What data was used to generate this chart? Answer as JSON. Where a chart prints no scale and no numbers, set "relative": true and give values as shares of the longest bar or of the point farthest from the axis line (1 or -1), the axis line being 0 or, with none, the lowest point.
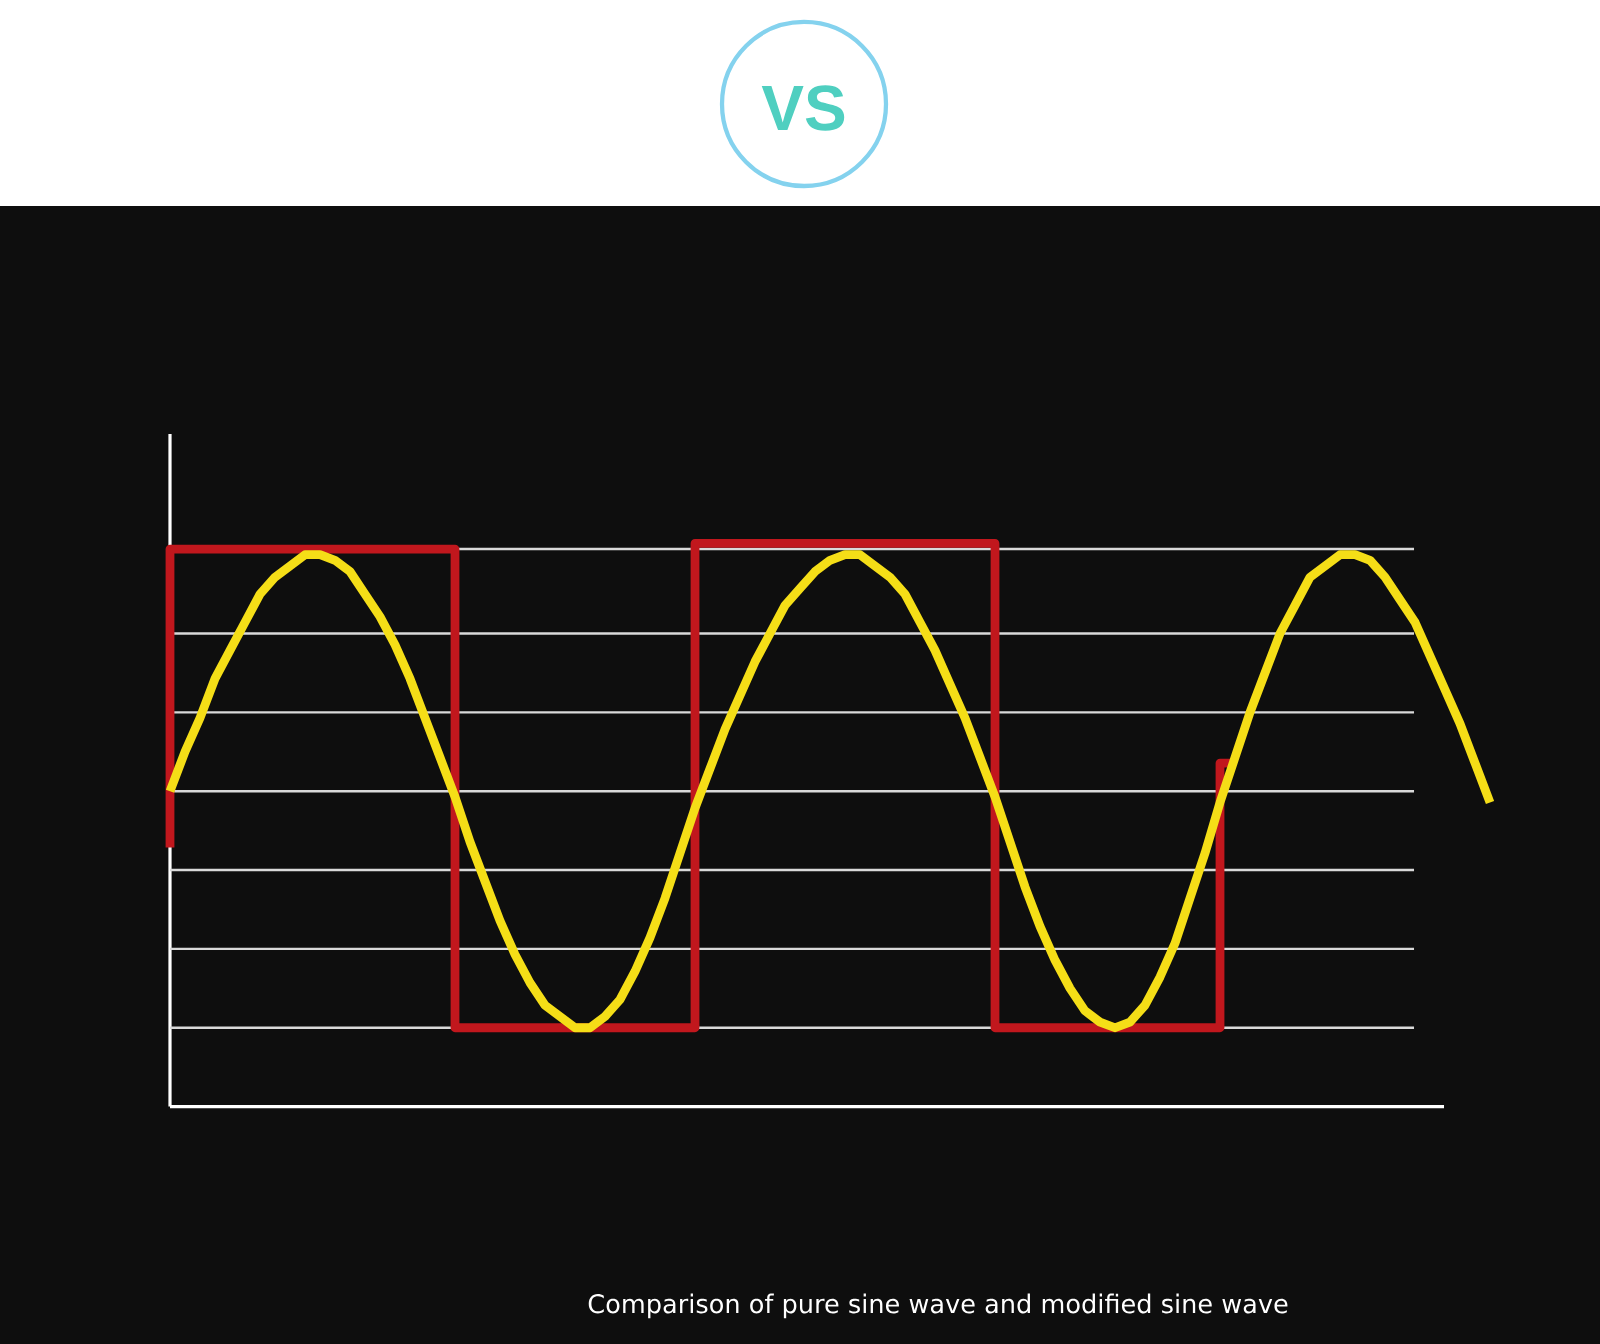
{
  "chart_data": {
    "type": "line",
    "title": "VS",
    "annotations": [
      "Comparison of pure sine wave and modified sine wave"
    ],
    "relative": true,
    "categories": [
      null,
      null,
      null,
      null,
      null,
      null,
      null,
      null,
      null,
      null,
      null,
      null,
      null,
      null,
      null,
      null,
      null,
      null,
      null,
      null,
      null,
      null,
      null,
      null,
      null,
      null,
      null,
      null,
      null,
      null,
      null,
      null,
      null,
      null,
      null,
      null,
      null,
      null,
      null,
      null,
      null,
      null,
      null,
      null,
      null,
      null,
      null,
      null,
      null,
      null,
      null,
      null,
      null,
      null,
      null,
      null,
      null,
      null,
      null,
      null,
      null,
      null,
      null,
      null,
      null,
      null,
      null,
      null,
      null,
      null,
      null,
      null,
      null,
      null,
      null,
      null,
      null,
      null,
      null,
      null,
      null,
      null,
      null,
      null,
      null,
      null,
      null,
      null,
      null
    ],
    "ref_lines": [
      {
        "axis": "y",
        "value": 0.99,
        "color": "#d9d9d9"
      },
      {
        "axis": "y",
        "value": 0.84,
        "color": "#d9d9d9"
      },
      {
        "axis": "y",
        "value": 0.7,
        "color": "#d9d9d9"
      },
      {
        "axis": "y",
        "value": 0.56,
        "color": "#d9d9d9"
      },
      {
        "axis": "y",
        "value": 0.42,
        "color": "#d9d9d9"
      },
      {
        "axis": "y",
        "value": 0.28,
        "color": "#d9d9d9"
      },
      {
        "axis": "y",
        "value": 0.14,
        "color": "#d9d9d9"
      }
    ],
    "series": [
      {
        "type": "step",
        "color": "#c1171d",
        "values": [
          0.46,
          0.99,
          0.99,
          0.99,
          0.99,
          0.99,
          0.99,
          0.99,
          0.99,
          0.99,
          0.99,
          0.99,
          0.99,
          0.99,
          0.99,
          0.99,
          0.99,
          0.99,
          0.99,
          0.99,
          0.14,
          0.14,
          0.14,
          0.14,
          0.14,
          0.14,
          0.14,
          0.14,
          0.14,
          0.14,
          0.14,
          0.14,
          0.14,
          0.14,
          0.14,
          0.14,
          1.0,
          1.0,
          1.0,
          1.0,
          1.0,
          1.0,
          1.0,
          1.0,
          1.0,
          1.0,
          1.0,
          1.0,
          1.0,
          1.0,
          1.0,
          1.0,
          1.0,
          1.0,
          1.0,
          1.0,
          0.14,
          0.14,
          0.14,
          0.14,
          0.14,
          0.14,
          0.14,
          0.14,
          0.14,
          0.14,
          0.14,
          0.14,
          0.14,
          0.14,
          0.14,
          0.61,
          null,
          null,
          null,
          null,
          null,
          null,
          null,
          null,
          null,
          null,
          null,
          null,
          null,
          null,
          null,
          null,
          null
        ]
      },
      {
        "color": "#f5de17",
        "values": [
          0.56,
          0.63,
          0.69,
          0.76,
          0.81,
          0.86,
          0.91,
          0.94,
          0.96,
          0.98,
          0.98,
          0.97,
          0.95,
          0.91,
          0.87,
          0.82,
          0.76,
          0.69,
          0.62,
          0.55,
          0.47,
          0.4,
          0.33,
          0.27,
          0.22,
          0.18,
          0.16,
          0.14,
          0.14,
          0.16,
          0.19,
          0.24,
          0.3,
          0.37,
          0.45,
          0.53,
          0.6,
          0.67,
          0.73,
          0.79,
          0.84,
          0.89,
          0.92,
          0.95,
          0.97,
          0.98,
          0.98,
          0.96,
          0.94,
          0.91,
          0.86,
          0.81,
          0.75,
          0.69,
          0.62,
          0.55,
          0.47,
          0.39,
          0.32,
          0.26,
          0.21,
          0.17,
          0.15,
          0.14,
          0.15,
          0.18,
          0.23,
          0.29,
          0.37,
          0.45,
          0.54,
          0.62,
          0.7,
          0.77,
          0.84,
          0.89,
          0.94,
          0.96,
          0.98,
          0.98,
          0.97,
          0.94,
          0.9,
          0.86,
          0.8,
          0.74,
          0.68,
          0.61,
          0.54
        ]
      }
    ]
  }
}
